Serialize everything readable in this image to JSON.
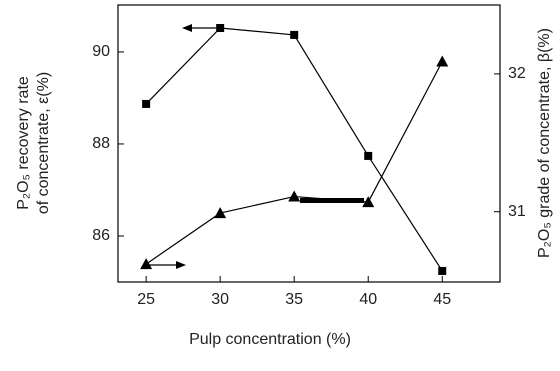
{
  "chart_data": {
    "type": "line",
    "x": [
      25,
      30,
      35,
      40,
      45
    ],
    "xlim": [
      23.1,
      48.9
    ],
    "xticks": [
      25,
      30,
      35,
      40,
      45
    ],
    "ylim": [
      85,
      91.02
    ],
    "yticks": [
      86,
      88,
      90
    ],
    "y2lim": [
      30.49,
      32.5
    ],
    "y2ticks": [
      31,
      32
    ],
    "xlabel": "Pulp concentration (%)",
    "ylabel": [
      "P₂O₅ recovery rate",
      "of concentrate, ε(%)"
    ],
    "y2label": "P₂O₅ grade of concentrate, β(%)",
    "series": [
      {
        "color": "#000000",
        "marker": "square",
        "values": [
          88.87,
          90.52,
          90.37,
          87.74,
          85.24
        ]
      },
      {
        "color": "#000000",
        "marker": "triangle",
        "axis": "y2",
        "values": [
          30.62,
          30.99,
          31.11,
          31.07,
          32.09
        ]
      }
    ]
  }
}
